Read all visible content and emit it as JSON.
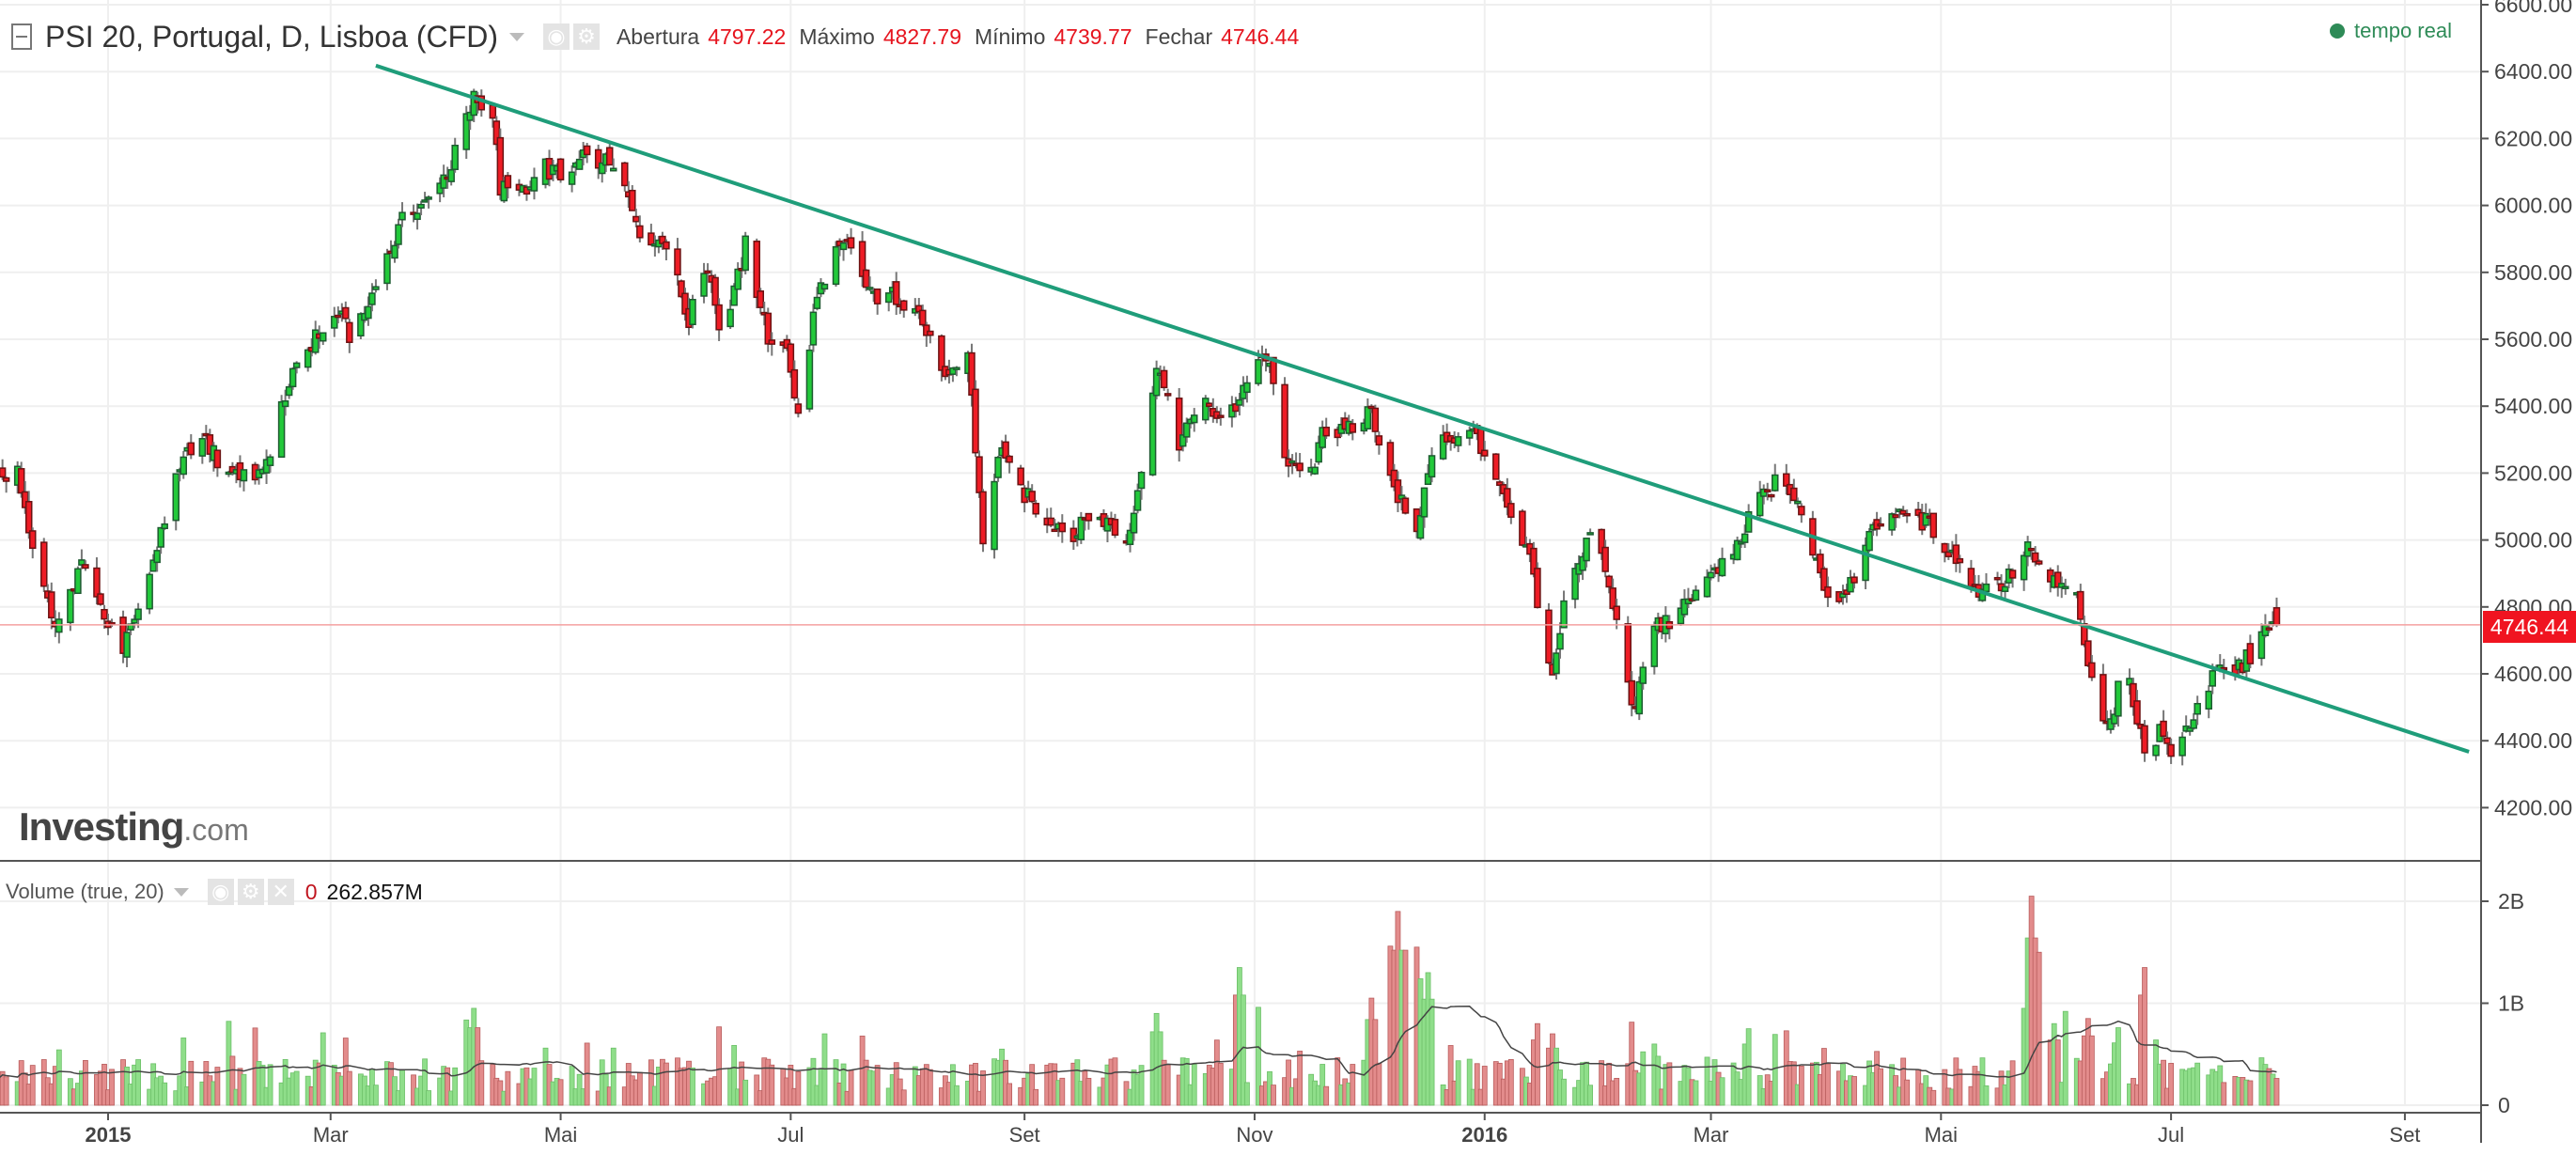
{
  "header": {
    "title": "PSI 20, Portugal, D, Lisboa (CFD)",
    "open_label": "Abertura",
    "open": "4797.22",
    "high_label": "Máximo",
    "high": "4827.79",
    "low_label": "Mínimo",
    "low": "4739.77",
    "close_label": "Fechar",
    "close": "4746.44",
    "realtime": "tempo real"
  },
  "volume_header": {
    "title": "Volume (true, 20)",
    "value0": "0",
    "value": "262.857M"
  },
  "logo": {
    "text": "Investing",
    "suffix": ".com"
  },
  "price_tag": "4746.44",
  "colors": {
    "up": "#22c93a",
    "down": "#ee1c25",
    "trendline": "#1f9d7a",
    "vol_up": "#8fde8a",
    "vol_down": "#e38c8c"
  },
  "chart_data": {
    "type": "candlestick",
    "x_unit": "days since 2015-01-01",
    "y_axis": {
      "ticks": [
        "4200.00",
        "4400.00",
        "4600.00",
        "4800.00",
        "5000.00",
        "5200.00",
        "5400.00",
        "5600.00",
        "5800.00",
        "6000.00",
        "6200.00",
        "6400.00",
        "6600.00"
      ],
      "ylim": [
        4140,
        6620
      ]
    },
    "x_axis": {
      "ticks": [
        {
          "label": "2015",
          "day": 0
        },
        {
          "label": "Mar",
          "day": 59
        },
        {
          "label": "Mai",
          "day": 120
        },
        {
          "label": "Jul",
          "day": 181
        },
        {
          "label": "Set",
          "day": 243
        },
        {
          "label": "Nov",
          "day": 304
        },
        {
          "label": "2016",
          "day": 365
        },
        {
          "label": "Mar",
          "day": 425
        },
        {
          "label": "Mai",
          "day": 486
        },
        {
          "label": "Jul",
          "day": 547
        },
        {
          "label": "Set",
          "day": 609
        }
      ],
      "xlim": [
        -29,
        640
      ]
    },
    "close_path": [
      [
        -29,
        5190
      ],
      [
        -24,
        5215
      ],
      [
        -20,
        4990
      ],
      [
        -14,
        4725
      ],
      [
        -7,
        4920
      ],
      [
        -3,
        4820
      ],
      [
        4,
        4675
      ],
      [
        10,
        4850
      ],
      [
        17,
        5140
      ],
      [
        24,
        5340
      ],
      [
        30,
        5215
      ],
      [
        41,
        5190
      ],
      [
        47,
        5440
      ],
      [
        54,
        5590
      ],
      [
        61,
        5680
      ],
      [
        65,
        5590
      ],
      [
        71,
        5760
      ],
      [
        78,
        5950
      ],
      [
        84,
        6000
      ],
      [
        91,
        6120
      ],
      [
        97,
        6320
      ],
      [
        102,
        6270
      ],
      [
        104,
        6050
      ],
      [
        111,
        6030
      ],
      [
        115,
        6120
      ],
      [
        122,
        6075
      ],
      [
        126,
        6150
      ],
      [
        135,
        6120
      ],
      [
        141,
        5930
      ],
      [
        148,
        5880
      ],
      [
        154,
        5655
      ],
      [
        159,
        5830
      ],
      [
        163,
        5590
      ],
      [
        169,
        5880
      ],
      [
        176,
        5565
      ],
      [
        180,
        5590
      ],
      [
        184,
        5290
      ],
      [
        187,
        5680
      ],
      [
        191,
        5830
      ],
      [
        196,
        5880
      ],
      [
        202,
        5730
      ],
      [
        209,
        5730
      ],
      [
        215,
        5680
      ],
      [
        222,
        5460
      ],
      [
        228,
        5560
      ],
      [
        232,
        4995
      ],
      [
        237,
        5290
      ],
      [
        241,
        5165
      ],
      [
        248,
        5070
      ],
      [
        257,
        5020
      ],
      [
        261,
        5095
      ],
      [
        270,
        4995
      ],
      [
        274,
        5215
      ],
      [
        278,
        5540
      ],
      [
        284,
        5265
      ],
      [
        289,
        5415
      ],
      [
        296,
        5365
      ],
      [
        300,
        5415
      ],
      [
        307,
        5560
      ],
      [
        312,
        5265
      ],
      [
        318,
        5140
      ],
      [
        322,
        5340
      ],
      [
        328,
        5315
      ],
      [
        335,
        5390
      ],
      [
        341,
        5140
      ],
      [
        347,
        5045
      ],
      [
        352,
        5290
      ],
      [
        359,
        5315
      ],
      [
        363,
        5315
      ],
      [
        370,
        5115
      ],
      [
        377,
        4945
      ],
      [
        383,
        4580
      ],
      [
        387,
        4870
      ],
      [
        394,
        5045
      ],
      [
        400,
        4750
      ],
      [
        405,
        4480
      ],
      [
        409,
        4750
      ],
      [
        416,
        4750
      ],
      [
        420,
        4850
      ],
      [
        426,
        4895
      ],
      [
        433,
        4995
      ],
      [
        437,
        5115
      ],
      [
        444,
        5190
      ],
      [
        450,
        5045
      ],
      [
        457,
        4800
      ],
      [
        463,
        4895
      ],
      [
        470,
        5070
      ],
      [
        476,
        5095
      ],
      [
        483,
        5045
      ],
      [
        490,
        4945
      ],
      [
        496,
        4850
      ],
      [
        503,
        4870
      ],
      [
        509,
        4970
      ],
      [
        513,
        4895
      ],
      [
        522,
        4820
      ],
      [
        527,
        4505
      ],
      [
        531,
        4455
      ],
      [
        535,
        4650
      ],
      [
        540,
        4355
      ],
      [
        544,
        4430
      ],
      [
        548,
        4355
      ],
      [
        553,
        4480
      ],
      [
        559,
        4600
      ],
      [
        566,
        4625
      ],
      [
        572,
        4725
      ],
      [
        575,
        4746.44
      ]
    ],
    "last_candle": {
      "open": 4797.22,
      "high": 4827.79,
      "low": 4739.77,
      "close": 4746.44
    },
    "trendline": [
      [
        71,
        6418
      ],
      [
        626,
        4367
      ]
    ],
    "current_price_line": 4746.44,
    "volume": {
      "ticks": [
        "0",
        "1B",
        "2B"
      ],
      "ylim_billions": [
        0,
        2.1
      ],
      "typical_billions": 0.3,
      "ma_period": 20,
      "last": "262.857M",
      "spikes": [
        [
          -28,
          0.33
        ],
        [
          32,
          0.6
        ],
        [
          97,
          0.95
        ],
        [
          115,
          0.7
        ],
        [
          135,
          0.7
        ],
        [
          175,
          0.45
        ],
        [
          237,
          0.55
        ],
        [
          278,
          0.9
        ],
        [
          300,
          1.35
        ],
        [
          304,
          1.2
        ],
        [
          335,
          1.05
        ],
        [
          339,
          1.95
        ],
        [
          342,
          1.9
        ],
        [
          345,
          1.9
        ],
        [
          347,
          1.55
        ],
        [
          350,
          1.3
        ],
        [
          379,
          0.8
        ],
        [
          383,
          0.7
        ],
        [
          410,
          0.6
        ],
        [
          435,
          0.75
        ],
        [
          508,
          0.95
        ],
        [
          510,
          2.05
        ],
        [
          512,
          1.5
        ],
        [
          516,
          0.8
        ],
        [
          520,
          1.15
        ],
        [
          525,
          0.85
        ],
        [
          534,
          0.95
        ],
        [
          540,
          1.35
        ],
        [
          542,
          0.8
        ],
        [
          572,
          0.4
        ]
      ]
    }
  }
}
